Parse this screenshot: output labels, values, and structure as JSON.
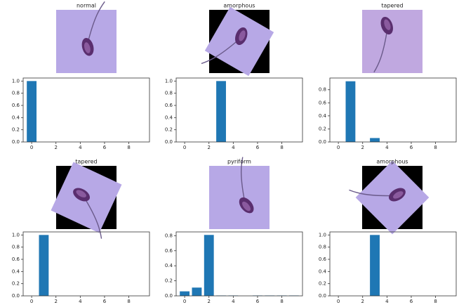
{
  "chart_data": [
    {
      "type": "bar",
      "title": "normal",
      "x": [
        0,
        1,
        2,
        3,
        4,
        5,
        6,
        7,
        8,
        9
      ],
      "values": [
        1,
        0,
        0,
        0,
        0,
        0,
        0,
        0,
        0,
        0
      ],
      "color": "#1f77b4",
      "xlim": [
        -0.7,
        9.7
      ],
      "xticks": [
        0,
        2,
        4,
        6,
        8
      ],
      "ylim": [
        0,
        1.05
      ],
      "yticks": [
        {
          "value": 0,
          "label": "0.0"
        },
        0.2,
        0.4,
        0.6,
        0.8,
        {
          "value": 1,
          "label": "1.0"
        }
      ]
    },
    {
      "type": "bar",
      "title": "amorphous",
      "x": [
        0,
        1,
        2,
        3,
        4,
        5,
        6,
        7,
        8,
        9
      ],
      "values": [
        0,
        0,
        0,
        1,
        0,
        0,
        0,
        0,
        0,
        0
      ],
      "color": "#1f77b4",
      "xlim": [
        -0.7,
        9.7
      ],
      "xticks": [
        0,
        2,
        4,
        6,
        8
      ],
      "ylim": [
        0,
        1.05
      ],
      "yticks": [
        {
          "value": 0,
          "label": "0.0"
        },
        0.2,
        0.4,
        0.6,
        0.8,
        {
          "value": 1,
          "label": "1.0"
        }
      ]
    },
    {
      "type": "bar",
      "title": "tapered",
      "x": [
        0,
        1,
        2,
        3,
        4,
        5,
        6,
        7,
        8,
        9
      ],
      "values": [
        0,
        0.93,
        0,
        0.06,
        0,
        0,
        0,
        0,
        0,
        0
      ],
      "color": "#1f77b4",
      "xlim": [
        -0.7,
        9.7
      ],
      "xticks": [
        0,
        2,
        4,
        6,
        8
      ],
      "ylim": [
        0,
        0.98
      ],
      "yticks": [
        {
          "value": 0,
          "label": "0.0"
        },
        0.2,
        0.4,
        0.6,
        0.8
      ]
    },
    {
      "type": "bar",
      "title": "tapered",
      "x": [
        0,
        1,
        2,
        3,
        4,
        5,
        6,
        7,
        8,
        9
      ],
      "values": [
        0,
        1,
        0,
        0,
        0,
        0,
        0,
        0,
        0,
        0
      ],
      "color": "#1f77b4",
      "xlim": [
        -0.7,
        9.7
      ],
      "xticks": [
        0,
        2,
        4,
        6,
        8
      ],
      "ylim": [
        0,
        1.05
      ],
      "yticks": [
        {
          "value": 0,
          "label": "0.0"
        },
        0.2,
        0.4,
        0.6,
        0.8,
        {
          "value": 1,
          "label": "1.0"
        }
      ]
    },
    {
      "type": "bar",
      "title": "pyriform",
      "x": [
        0,
        1,
        2,
        3,
        4,
        5,
        6,
        7,
        8,
        9
      ],
      "values": [
        0.06,
        0.11,
        0.81,
        0.005,
        0.005,
        0,
        0.005,
        0.005,
        0.005,
        0.005
      ],
      "color": "#1f77b4",
      "xlim": [
        -0.7,
        9.7
      ],
      "xticks": [
        0,
        2,
        4,
        6,
        8
      ],
      "ylim": [
        0,
        0.85
      ],
      "yticks": [
        {
          "value": 0,
          "label": "0.0"
        },
        0.2,
        0.4,
        0.6,
        0.8
      ]
    },
    {
      "type": "bar",
      "title": "amorphous",
      "x": [
        0,
        1,
        2,
        3,
        4,
        5,
        6,
        7,
        8,
        9
      ],
      "values": [
        0,
        0,
        0,
        1,
        0,
        0,
        0,
        0,
        0,
        0
      ],
      "color": "#1f77b4",
      "xlim": [
        -0.7,
        9.7
      ],
      "xticks": [
        0,
        2,
        4,
        6,
        8
      ],
      "ylim": [
        0,
        1.05
      ],
      "yticks": [
        {
          "value": 0,
          "label": "0.0"
        },
        0.2,
        0.4,
        0.6,
        0.8,
        {
          "value": 1,
          "label": "1.0"
        }
      ]
    }
  ]
}
